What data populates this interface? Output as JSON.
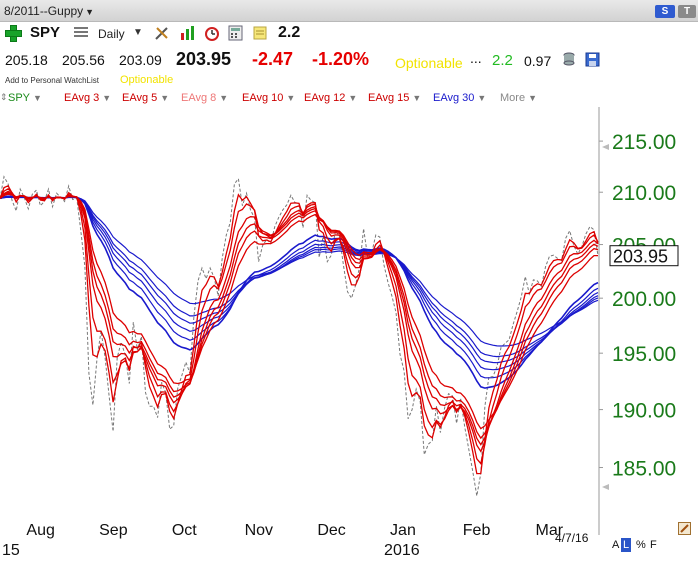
{
  "window": {
    "title": "8/2011--Guppy",
    "badge_s": "S",
    "badge_t": "T"
  },
  "toolbar": {
    "symbol": "SPY",
    "period": "Daily",
    "rating": "2.2"
  },
  "quote": {
    "open": "205.18",
    "high": "205.56",
    "low": "203.09",
    "last": "203.95",
    "change": "-2.47",
    "change_pct": "-1.20%",
    "optionable": "Optionable",
    "ellipsis": "...",
    "rating": "2.2",
    "beta": "0.97"
  },
  "watchlist": {
    "add_label": "Add to Personal WatchList",
    "optionable": "Optionable"
  },
  "legend": [
    {
      "name": "SPY",
      "color": "#1a8a1a"
    },
    {
      "name": "EAvg 3",
      "color": "#cc0000"
    },
    {
      "name": "EAvg 5",
      "color": "#cc0000"
    },
    {
      "name": "EAvg 8",
      "color": "#ee7777"
    },
    {
      "name": "EAvg 10",
      "color": "#cc0000"
    },
    {
      "name": "EAvg 12",
      "color": "#cc0000"
    },
    {
      "name": "EAvg 15",
      "color": "#cc0000"
    },
    {
      "name": "EAvg 30",
      "color": "#1a1acc"
    },
    {
      "name": "More",
      "color": "#888888"
    }
  ],
  "footer": {
    "date": "4/7/16",
    "mode_a": "A",
    "mode_l": "L",
    "mode_pct": "%",
    "mode_f": "F"
  },
  "chart_data": {
    "type": "line",
    "ylim": [
      181,
      218
    ],
    "y_ticks": [
      "215.00",
      "210.00",
      "205.00",
      "200.00",
      "195.00",
      "190.00",
      "185.00"
    ],
    "y_tick_values": [
      215,
      210,
      205,
      200,
      195,
      190,
      185
    ],
    "x_month_labels": [
      "Aug",
      "Sep",
      "Oct",
      "Nov",
      "Dec",
      "Jan",
      "Feb",
      "Mar"
    ],
    "x_month_index": [
      10,
      28,
      46,
      64,
      82,
      100,
      118,
      136
    ],
    "x_year_labels": [
      "15",
      "2016"
    ],
    "x_year_index": [
      -3,
      100
    ],
    "last_price_label": "203.95",
    "price_color": "#777777",
    "short_color": "#dd0000",
    "long_color": "#1a1acc",
    "short_periods": [
      3,
      5,
      8,
      10,
      12,
      15
    ],
    "long_periods": [
      30,
      35,
      40,
      45,
      50,
      60
    ],
    "price": [
      209.4,
      211.5,
      210.8,
      209.2,
      208.2,
      210.3,
      209.5,
      208.4,
      209.8,
      210.2,
      208.7,
      209.1,
      210.3,
      208.6,
      209.9,
      209.5,
      209.1,
      210.6,
      209.3,
      209.4,
      206.3,
      202.9,
      193.2,
      190.4,
      194.5,
      197.0,
      194.6,
      191.2,
      188.1,
      194.6,
      196.0,
      194.8,
      192.3,
      197.8,
      195.3,
      196.5,
      191.5,
      190.3,
      190.3,
      189.3,
      192.4,
      191.5,
      188.3,
      188.6,
      191.9,
      193.0,
      194.2,
      193.2,
      198.3,
      201.6,
      202.8,
      201.8,
      202.8,
      201.9,
      200.2,
      203.7,
      205.9,
      207.1,
      210.8,
      211.3,
      208.7,
      209.9,
      208.3,
      207.5,
      203.4,
      204.9,
      205.5,
      205.1,
      206.7,
      207.6,
      208.3,
      208.8,
      209.7,
      209.0,
      208.9,
      206.6,
      209.7,
      209.2,
      209.0,
      203.8,
      205.8,
      203.4,
      204.0,
      206.3,
      205.8,
      203.1,
      200.6,
      200.0,
      201.2,
      202.9,
      206.5,
      203.8,
      204.2,
      205.9,
      205.7,
      203.1,
      201.5,
      200.2,
      198.7,
      194.9,
      193.4,
      189.2,
      190.0,
      191.8,
      190.7,
      186.1,
      187.0,
      187.3,
      190.3,
      188.0,
      190.1,
      191.4,
      191.2,
      188.8,
      191.0,
      188.5,
      186.6,
      184.7,
      182.6,
      184.5,
      190.3,
      192.9,
      192.9,
      193.8,
      195.5,
      195.9,
      196.2,
      197.6,
      198.8,
      200.1,
      202.0,
      200.4,
      201.7,
      201.6,
      201.1,
      202.9,
      203.9,
      204.0,
      203.7,
      203.5,
      205.6,
      206.3,
      204.9,
      204.1,
      204.8,
      206.0,
      206.7,
      206.4,
      203.95
    ]
  }
}
